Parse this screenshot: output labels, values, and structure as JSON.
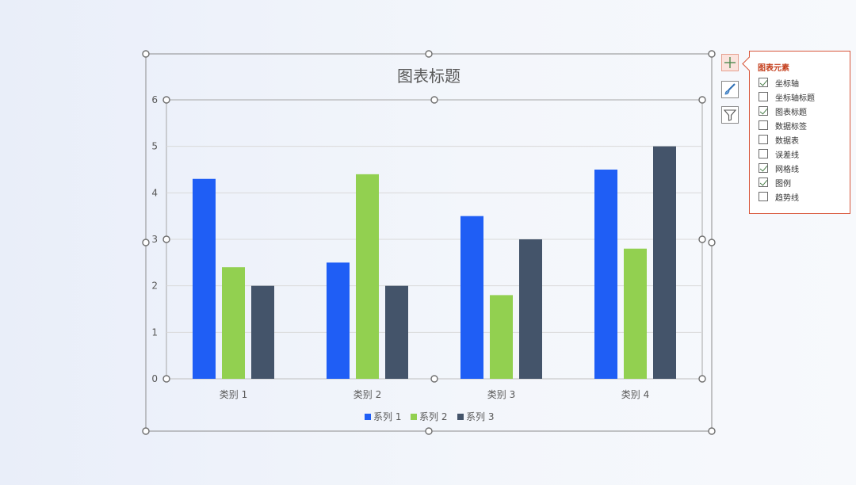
{
  "chart_data": {
    "type": "bar",
    "title": "图表标题",
    "categories": [
      "类别 1",
      "类别 2",
      "类别 3",
      "类别 4"
    ],
    "series": [
      {
        "name": "系列 1",
        "values": [
          4.3,
          2.5,
          3.5,
          4.5
        ]
      },
      {
        "name": "系列 2",
        "values": [
          2.4,
          4.4,
          1.8,
          2.8
        ]
      },
      {
        "name": "系列 3",
        "values": [
          2.0,
          2.0,
          3.0,
          5.0
        ]
      }
    ],
    "ylim": [
      0,
      6
    ],
    "yticks": [
      "0",
      "1",
      "2",
      "3",
      "4",
      "5",
      "6"
    ],
    "xlabel": "",
    "ylabel": "",
    "grid": true,
    "legend_position": "bottom"
  },
  "colors": {
    "series": [
      "#1f5ef5",
      "#92d050",
      "#44546a"
    ],
    "gridline": "#d9d9d9",
    "panel_accent": "#d8563a"
  },
  "side_buttons": {
    "elements": "plus-icon",
    "style": "brush-icon",
    "filter": "filter-icon"
  },
  "elements_panel": {
    "title": "图表元素",
    "options": [
      {
        "label": "坐标轴",
        "checked": true
      },
      {
        "label": "坐标轴标题",
        "checked": false
      },
      {
        "label": "图表标题",
        "checked": true
      },
      {
        "label": "数据标签",
        "checked": false
      },
      {
        "label": "数据表",
        "checked": false
      },
      {
        "label": "误差线",
        "checked": false
      },
      {
        "label": "网格线",
        "checked": true
      },
      {
        "label": "图例",
        "checked": true
      },
      {
        "label": "趋势线",
        "checked": false
      }
    ]
  }
}
